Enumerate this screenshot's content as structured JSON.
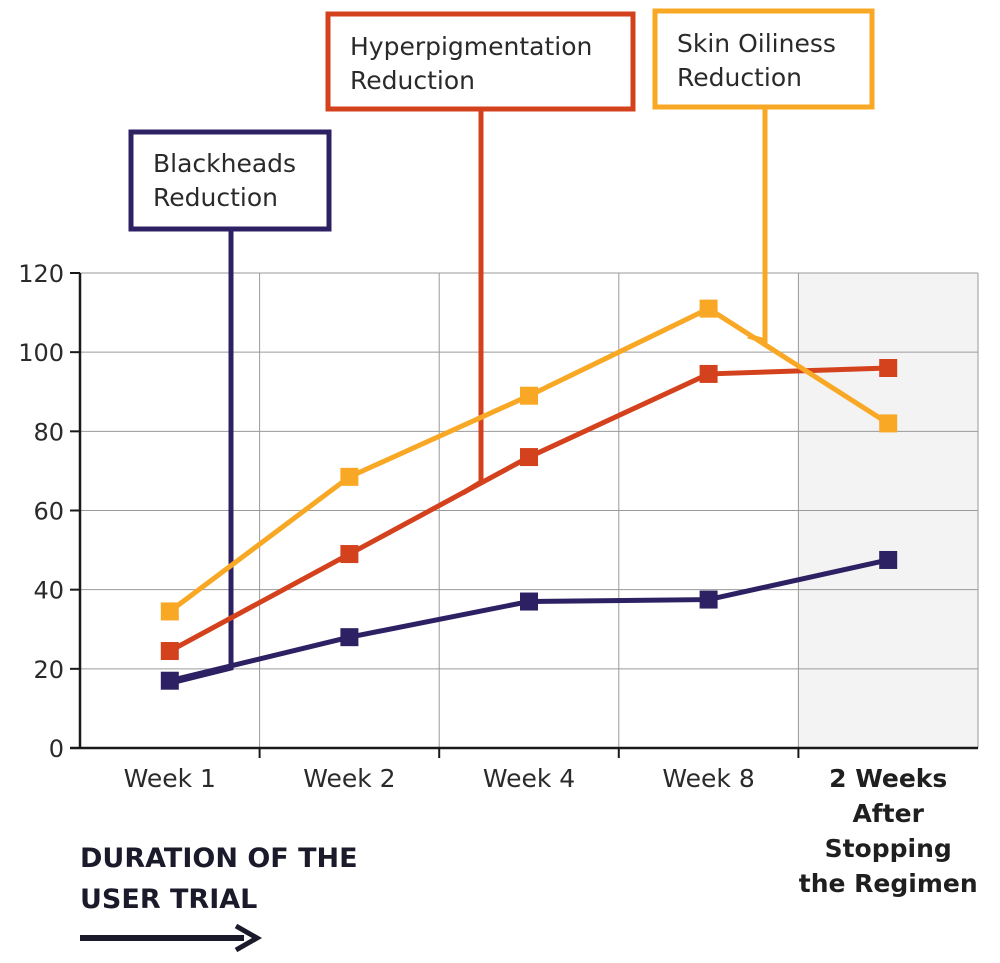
{
  "chart_data": {
    "type": "line",
    "categories": [
      "Week 1",
      "Week 2",
      "Week 4",
      "Week 8",
      "2 Weeks After Stopping the Regimen"
    ],
    "highlight_category_index": 4,
    "category_label_lines": [
      [
        "Week 1"
      ],
      [
        "Week 2"
      ],
      [
        "Week 4"
      ],
      [
        "Week 8"
      ],
      [
        "2 Weeks",
        "After",
        "Stopping",
        "the Regimen"
      ]
    ],
    "ylim": [
      0,
      120
    ],
    "yticks": [
      0,
      20,
      40,
      60,
      80,
      100,
      120
    ],
    "grid": true,
    "xlabel_lines": [
      "DURATION OF THE",
      "USER TRIAL"
    ],
    "series": [
      {
        "name": "Blackheads Reduction",
        "label_lines": [
          "Blackheads",
          "Reduction"
        ],
        "color": "#2e2163",
        "values": [
          17,
          28,
          37,
          37.5,
          47.5
        ]
      },
      {
        "name": "Hyperpigmentation Reduction",
        "label_lines": [
          "Hyperpigmentation",
          "Reduction"
        ],
        "color": "#d4421d",
        "values": [
          24.5,
          49,
          73.5,
          94.5,
          96
        ]
      },
      {
        "name": "Skin Oiliness Reduction",
        "label_lines": [
          "Skin Oiliness",
          "Reduction"
        ],
        "color": "#f9a825",
        "values": [
          34.5,
          68.5,
          89,
          111,
          82
        ]
      }
    ]
  }
}
